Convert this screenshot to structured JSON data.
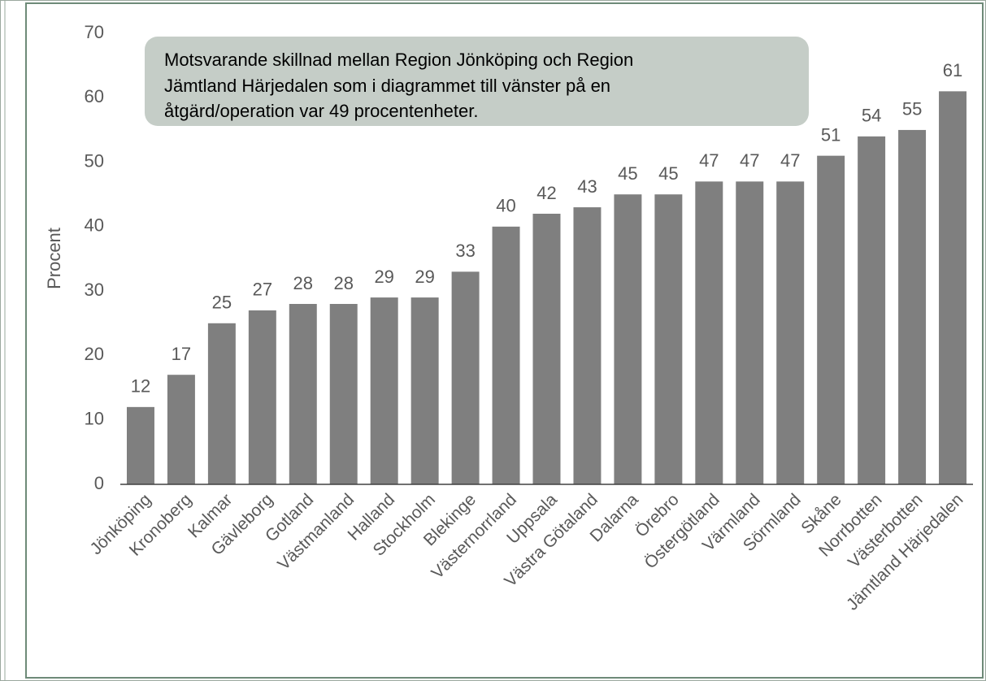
{
  "chart_data": {
    "type": "bar",
    "y_label": "Procent",
    "annotation": [
      "Motsvarande skillnad mellan Region Jönköping och Region",
      "Jämtland Härjedalen som i diagrammet till vänster på en",
      "åtgärd/operation var 49 procentenheter."
    ],
    "categories": [
      "Jönköping",
      "Kronoberg",
      "Kalmar",
      "Gävleborg",
      "Gotland",
      "Västmanland",
      "Halland",
      "Stockholm",
      "Blekinge",
      "Västernorrland",
      "Uppsala",
      "Västra Götaland",
      "Dalarna",
      "Örebro",
      "Östergötland",
      "Värmland",
      "Sörmland",
      "Skåne",
      "Norrbotten",
      "Västerbotten",
      "Jämtland Härjedalen"
    ],
    "values": [
      12,
      17,
      25,
      27,
      28,
      28,
      29,
      29,
      33,
      40,
      42,
      43,
      45,
      45,
      47,
      47,
      47,
      51,
      54,
      55,
      61
    ],
    "color": "#7f7f7f",
    "ylim": [
      0,
      70
    ],
    "yticks": [
      0,
      10,
      20,
      30,
      40,
      50,
      60,
      70
    ],
    "grid": false
  }
}
